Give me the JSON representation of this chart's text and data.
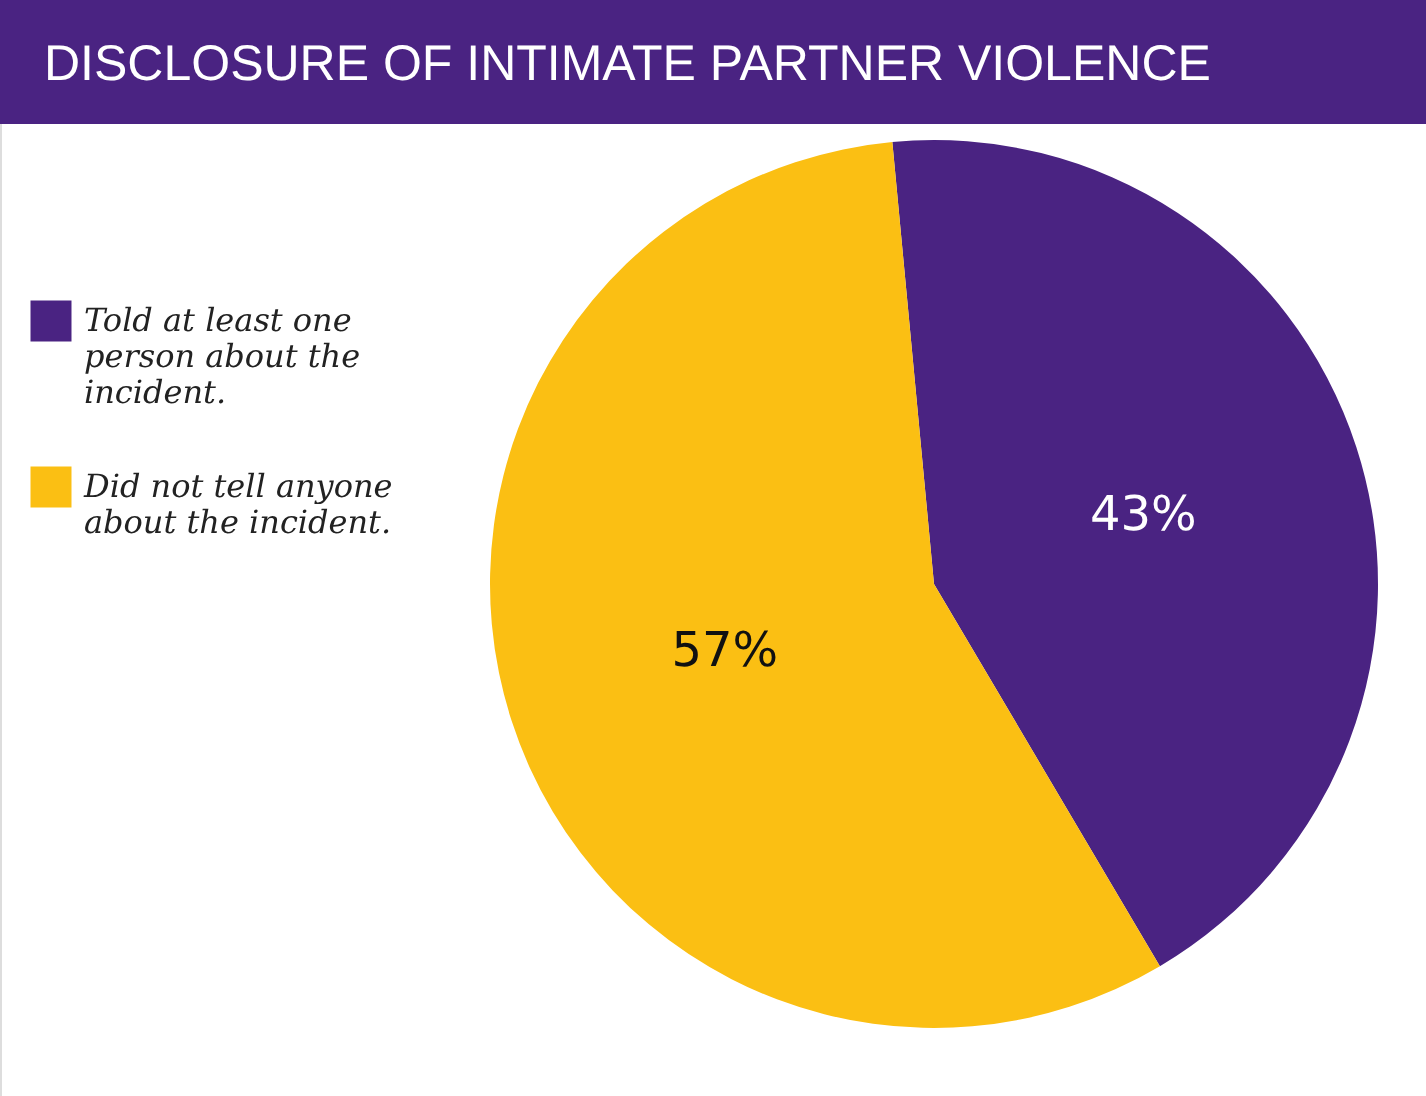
{
  "chart_data": {
    "type": "pie",
    "title": "DISCLOSURE OF INTIMATE PARTNER VIOLENCE",
    "categories": [
      "Told at least one person about the incident.",
      "Did not tell anyone about the incident."
    ],
    "values": [
      43,
      57
    ],
    "colors": [
      "#4a2382",
      "#fbbf13"
    ],
    "value_labels": [
      "43%",
      "57%"
    ],
    "legend": "left"
  }
}
